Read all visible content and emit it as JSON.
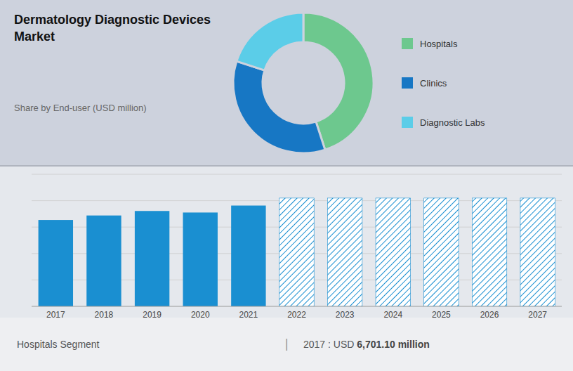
{
  "chart_data": [
    {
      "type": "pie",
      "title": "Dermatology Diagnostic Devices\nMarket",
      "subtitle": "Share by End-user (USD million)",
      "categories": [
        "Hospitals",
        "Clinics",
        "Diagnostic Labs"
      ],
      "values": [
        45,
        35,
        20
      ],
      "colors": [
        "#6dc88e",
        "#1777c4",
        "#5bcde8"
      ],
      "legend": "right"
    },
    {
      "type": "bar",
      "categories": [
        "2017",
        "2018",
        "2019",
        "2020",
        "2021",
        "2022",
        "2023",
        "2024",
        "2025",
        "2026",
        "2027"
      ],
      "series": [
        {
          "color": "#1a8fd1",
          "values": [
            6701,
            7050,
            7400,
            7280,
            7820,
            null,
            null,
            null,
            null,
            null,
            null
          ]
        },
        {
          "color": "#1a8fd1",
          "values": [
            null,
            null,
            null,
            null,
            null,
            8400,
            8400,
            8400,
            8400,
            8400,
            8400
          ]
        }
      ],
      "stacked": true,
      "ylim": [
        0,
        10248
      ],
      "yticks": [
        2049.6,
        4099.2,
        6148.8,
        8198.4,
        10248
      ],
      "grid": true,
      "tick_labels": "x",
      "annotations": [
        "Hospitals Segment",
        "|",
        "2017 : USD ",
        "6,701.10 million"
      ]
    }
  ]
}
